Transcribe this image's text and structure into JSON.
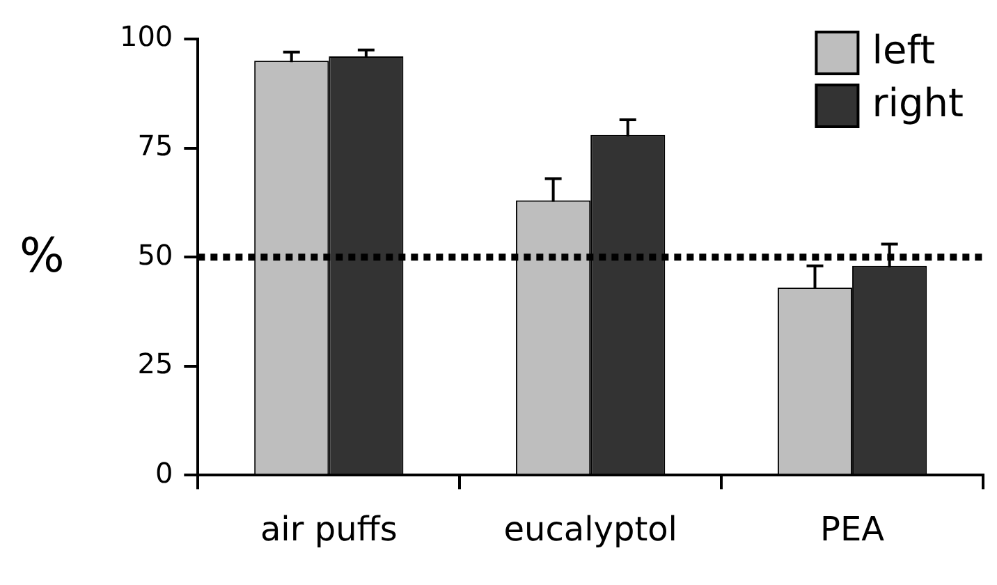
{
  "chart_data": {
    "type": "bar",
    "ylabel": "%",
    "categories": [
      "air puffs",
      "eucalyptol",
      "PEA"
    ],
    "series": [
      {
        "name": "left",
        "color": "#bebebe",
        "values": [
          95,
          63,
          43
        ],
        "errors": [
          2,
          5,
          5
        ]
      },
      {
        "name": "right",
        "color": "#333333",
        "values": [
          96,
          78,
          48
        ],
        "errors": [
          1.5,
          3.5,
          5
        ]
      }
    ],
    "ylim": [
      0,
      100
    ],
    "yticks": [
      0,
      25,
      50,
      75,
      100
    ],
    "grid": false,
    "legend": "top right",
    "ref_lines": [
      {
        "axis": "y",
        "value": 50,
        "line_style": "dotted",
        "color": "#000000"
      }
    ]
  }
}
